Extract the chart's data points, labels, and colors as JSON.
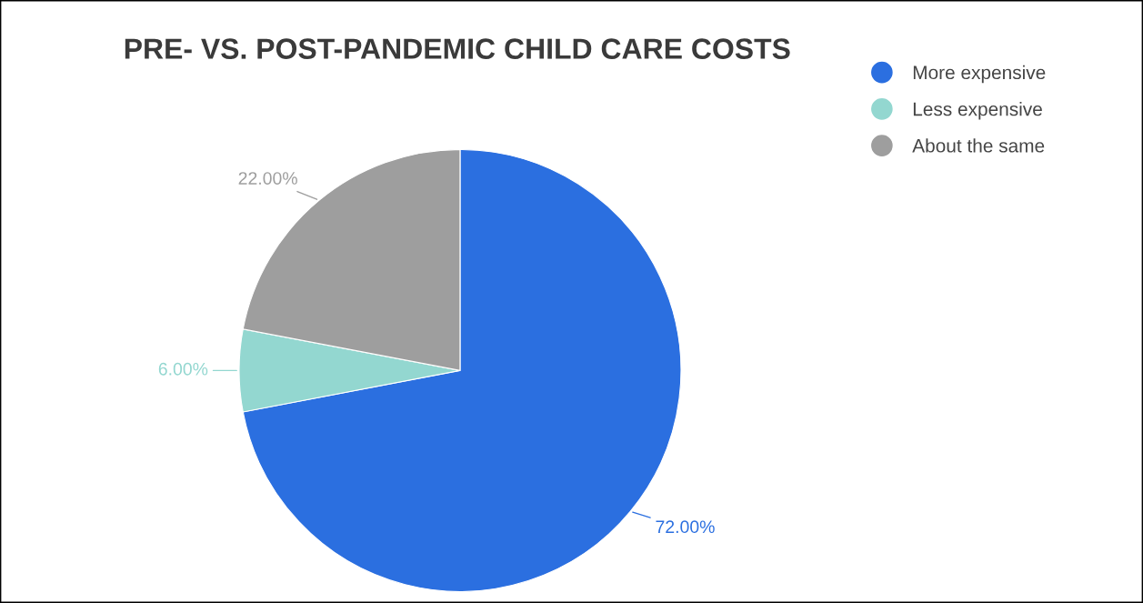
{
  "chart_data": {
    "type": "pie",
    "title": "PRE- VS. POST-PANDEMIC CHILD CARE COSTS",
    "categories": [
      "More expensive",
      "Less expensive",
      "About the same"
    ],
    "values": [
      72,
      6,
      22
    ],
    "colors": [
      "#2b6fe0",
      "#93d7d0",
      "#9e9e9e"
    ],
    "value_labels": [
      "72.00%",
      "6.00%",
      "22.00%"
    ],
    "legend": "top right"
  }
}
